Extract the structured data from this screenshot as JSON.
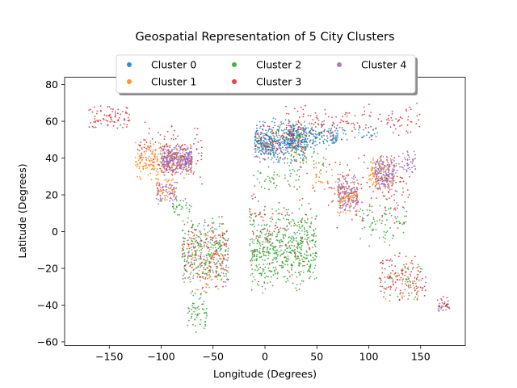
{
  "chart_data": {
    "type": "scatter",
    "title": "Geospatial Representation of 5 City Clusters",
    "xlabel": "Longitude (Degrees)",
    "ylabel": "Latitude (Degrees)",
    "xlim": [
      -193,
      193
    ],
    "ylim": [
      -62,
      84
    ],
    "xticks": [
      -150,
      -100,
      -50,
      0,
      50,
      100,
      150
    ],
    "yticks": [
      -60,
      -40,
      -20,
      0,
      20,
      40,
      60,
      80
    ],
    "legend_position": "top-center",
    "legend_columns": 3,
    "point_size_note": "small dots",
    "series": [
      {
        "name": "Cluster 0",
        "color": "#1f77b4",
        "regions": [
          {
            "lon": [
              -10,
              40
            ],
            "lat": [
              36,
              62
            ],
            "n": 420
          },
          {
            "lon": [
              20,
              70
            ],
            "lat": [
              44,
              60
            ],
            "n": 180
          },
          {
            "lon": [
              60,
              110
            ],
            "lat": [
              48,
              58
            ],
            "n": 40
          },
          {
            "lon": [
              -5,
              10
            ],
            "lat": [
              40,
              52
            ],
            "n": 40
          }
        ]
      },
      {
        "name": "Cluster 1",
        "color": "#ff7f0e",
        "regions": [
          {
            "lon": [
              -125,
              -70
            ],
            "lat": [
              28,
              50
            ],
            "n": 260
          },
          {
            "lon": [
              -105,
              -85
            ],
            "lat": [
              15,
              30
            ],
            "n": 60
          },
          {
            "lon": [
              70,
              90
            ],
            "lat": [
              8,
              30
            ],
            "n": 120
          },
          {
            "lon": [
              100,
              125
            ],
            "lat": [
              20,
              42
            ],
            "n": 120
          },
          {
            "lon": [
              -75,
              -40
            ],
            "lat": [
              -35,
              5
            ],
            "n": 70
          },
          {
            "lon": [
              -10,
              40
            ],
            "lat": [
              35,
              60
            ],
            "n": 60
          },
          {
            "lon": [
              115,
              152
            ],
            "lat": [
              -40,
              -15
            ],
            "n": 20
          },
          {
            "lon": [
              45,
              75
            ],
            "lat": [
              20,
              40
            ],
            "n": 30
          }
        ]
      },
      {
        "name": "Cluster 2",
        "color": "#2ca02c",
        "regions": [
          {
            "lon": [
              -15,
              50
            ],
            "lat": [
              -34,
              15
            ],
            "n": 520
          },
          {
            "lon": [
              -80,
              -35
            ],
            "lat": [
              -30,
              10
            ],
            "n": 230
          },
          {
            "lon": [
              -75,
              -55
            ],
            "lat": [
              -55,
              -30
            ],
            "n": 60
          },
          {
            "lon": [
              -90,
              -70
            ],
            "lat": [
              8,
              20
            ],
            "n": 30
          },
          {
            "lon": [
              90,
              140
            ],
            "lat": [
              -10,
              20
            ],
            "n": 80
          },
          {
            "lon": [
              20,
              60
            ],
            "lat": [
              30,
              60
            ],
            "n": 60
          },
          {
            "lon": [
              115,
              152
            ],
            "lat": [
              -40,
              -12
            ],
            "n": 40
          },
          {
            "lon": [
              -10,
              35
            ],
            "lat": [
              20,
              36
            ],
            "n": 40
          }
        ]
      },
      {
        "name": "Cluster 3",
        "color": "#d62728",
        "regions": [
          {
            "lon": [
              -170,
              -130
            ],
            "lat": [
              55,
              70
            ],
            "n": 80
          },
          {
            "lon": [
              -125,
              -60
            ],
            "lat": [
              25,
              60
            ],
            "n": 120
          },
          {
            "lon": [
              -80,
              -35
            ],
            "lat": [
              -35,
              10
            ],
            "n": 130
          },
          {
            "lon": [
              110,
              155
            ],
            "lat": [
              -40,
              -10
            ],
            "n": 120
          },
          {
            "lon": [
              165,
              178
            ],
            "lat": [
              -46,
              -34
            ],
            "n": 25
          },
          {
            "lon": [
              20,
              150
            ],
            "lat": [
              50,
              70
            ],
            "n": 150
          },
          {
            "lon": [
              60,
              140
            ],
            "lat": [
              0,
              45
            ],
            "n": 120
          },
          {
            "lon": [
              -15,
              50
            ],
            "lat": [
              -34,
              36
            ],
            "n": 100
          },
          {
            "lon": [
              -10,
              40
            ],
            "lat": [
              36,
              62
            ],
            "n": 60
          }
        ]
      },
      {
        "name": "Cluster 4",
        "color": "#9467bd",
        "regions": [
          {
            "lon": [
              -100,
              -70
            ],
            "lat": [
              30,
              48
            ],
            "n": 300
          },
          {
            "lon": [
              -105,
              -85
            ],
            "lat": [
              14,
              28
            ],
            "n": 60
          },
          {
            "lon": [
              70,
              90
            ],
            "lat": [
              10,
              32
            ],
            "n": 130
          },
          {
            "lon": [
              105,
              125
            ],
            "lat": [
              22,
              42
            ],
            "n": 160
          },
          {
            "lon": [
              125,
              145
            ],
            "lat": [
              30,
              45
            ],
            "n": 50
          },
          {
            "lon": [
              -80,
              -35
            ],
            "lat": [
              -34,
              5
            ],
            "n": 60
          },
          {
            "lon": [
              -10,
              40
            ],
            "lat": [
              36,
              60
            ],
            "n": 40
          },
          {
            "lon": [
              165,
              178
            ],
            "lat": [
              -46,
              -36
            ],
            "n": 15
          }
        ]
      }
    ]
  }
}
